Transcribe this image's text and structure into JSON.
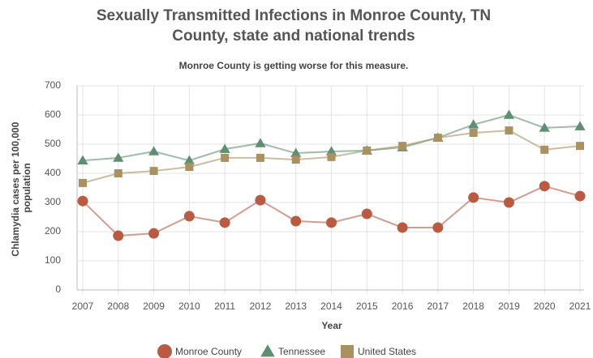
{
  "chart_data": {
    "type": "line",
    "title": "Sexually Transmitted Infections in Monroe County, TN",
    "title_line2": "County, state and national trends",
    "subtitle": "Monroe County is getting worse for this measure.",
    "x_label": "Year",
    "y_label": "Chlamydia cases per 100,000",
    "y_label_line2": "population",
    "categories": [
      "2007",
      "2008",
      "2009",
      "2010",
      "2011",
      "2012",
      "2013",
      "2014",
      "2015",
      "2016",
      "2017",
      "2018",
      "2019",
      "2020",
      "2021"
    ],
    "ylim": [
      0,
      700
    ],
    "yticks": [
      0,
      100,
      200,
      300,
      400,
      500,
      600,
      700
    ],
    "grid": true,
    "series": [
      {
        "name": "Monroe County",
        "color": "#b95a42",
        "marker": "circle",
        "values": [
          305,
          186,
          194,
          253,
          231,
          308,
          236,
          231,
          261,
          214,
          214,
          317,
          300,
          356,
          322
        ]
      },
      {
        "name": "Tennessee",
        "color": "#5e8f72",
        "marker": "triangle",
        "values": [
          444,
          453,
          475,
          444,
          483,
          503,
          469,
          475,
          478,
          489,
          522,
          567,
          600,
          556,
          561
        ]
      },
      {
        "name": "United States",
        "color": "#a99160",
        "marker": "square",
        "values": [
          367,
          400,
          408,
          422,
          453,
          453,
          447,
          456,
          478,
          494,
          522,
          539,
          547,
          481,
          494
        ]
      }
    ]
  }
}
